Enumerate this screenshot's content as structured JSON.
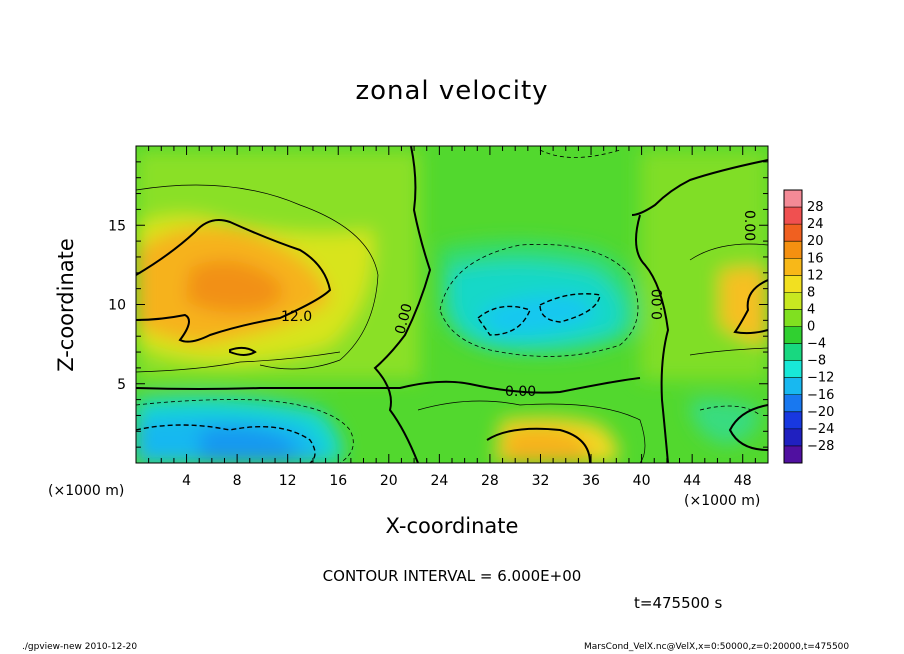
{
  "chart_data": {
    "type": "heatmap",
    "title": "zonal velocity",
    "xlabel": "X-coordinate",
    "ylabel": "Z-coordinate",
    "x_unit_label": "(×1000 m)",
    "xlim": [
      0,
      50
    ],
    "ylim": [
      0,
      20
    ],
    "x_ticks": [
      "4",
      "8",
      "12",
      "16",
      "20",
      "24",
      "28",
      "32",
      "36",
      "40",
      "44",
      "48"
    ],
    "y_ticks": [
      "5",
      "10",
      "15"
    ],
    "colorbar": {
      "labels": [
        "28",
        "24",
        "20",
        "16",
        "12",
        "8",
        "4",
        "0",
        "−4",
        "−8",
        "−12",
        "−16",
        "−20",
        "−24",
        "−28"
      ],
      "colors": [
        "#f48a96",
        "#f05050",
        "#f06020",
        "#f59010",
        "#f8b818",
        "#f2e020",
        "#c8e820",
        "#80e020",
        "#30d030",
        "#18d880",
        "#18e8d8",
        "#18b8f0",
        "#1878f0",
        "#1838e0",
        "#2020c0",
        "#5010a0"
      ]
    },
    "contour_interval": "CONTOUR INTERVAL = 6.000E+00",
    "contour_labels": [
      "12.0",
      "0.00",
      "0.00",
      "0.00",
      "0.00"
    ],
    "fields": [
      {
        "name": "background",
        "value": 2,
        "color": "#52d82e"
      },
      {
        "name": "upper-left jet",
        "x": [
          0,
          17
        ],
        "z": [
          7,
          16
        ],
        "peak": 16,
        "color": "#f6b21a"
      },
      {
        "name": "surface jet x≈33",
        "x": [
          28,
          37
        ],
        "z": [
          0,
          2.5
        ],
        "peak": 16,
        "color": "#f6b21a"
      },
      {
        "name": "right-edge jet",
        "x": [
          46,
          50
        ],
        "z": [
          7,
          12
        ],
        "peak": 12,
        "color": "#f8c820"
      },
      {
        "name": "central reversal",
        "x": [
          24,
          41
        ],
        "z": [
          5,
          15
        ],
        "peak": -12,
        "color": "#18d8e8"
      },
      {
        "name": "lower-left reversal",
        "x": [
          0,
          16
        ],
        "z": [
          0,
          4
        ],
        "peak": -16,
        "color": "#18b8f0"
      }
    ],
    "annotation_time": "t=475500 s"
  },
  "footer": {
    "left": "./gpview-new   2010-12-20",
    "right": "MarsCond_VelX.nc@VelX,x=0:50000,z=0:20000,t=475500"
  }
}
